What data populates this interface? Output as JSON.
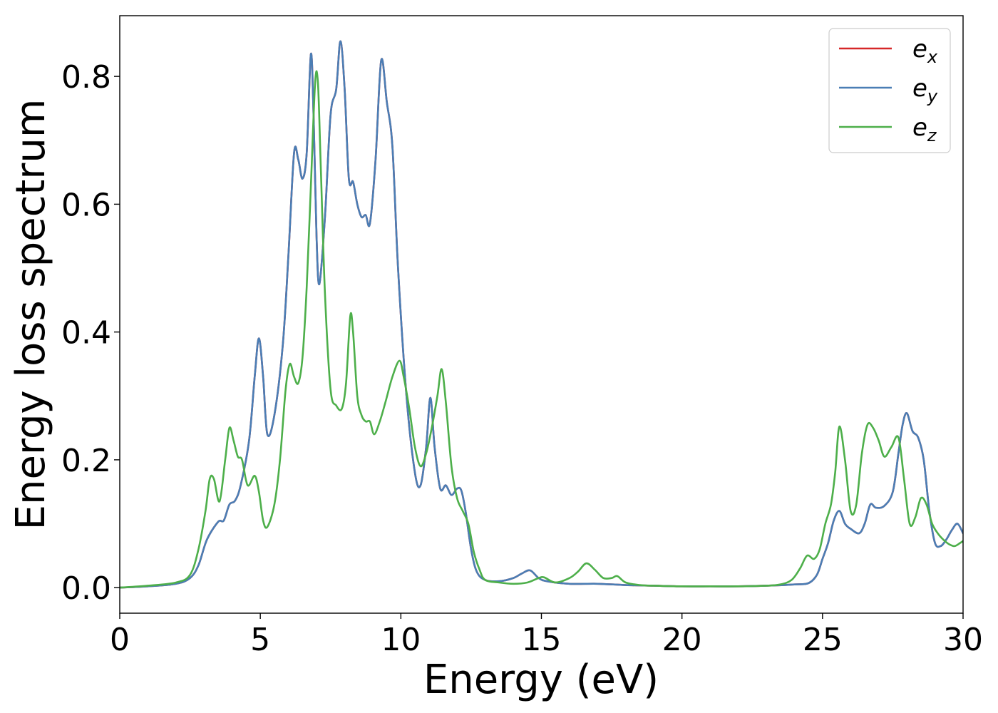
{
  "chart_data": {
    "type": "line",
    "title": "",
    "xlabel": "Energy (eV)",
    "ylabel": "Energy loss spectrum",
    "xlim": [
      0,
      30
    ],
    "ylim": [
      -0.04,
      0.895
    ],
    "xticks": [
      0,
      5,
      10,
      15,
      20,
      25,
      30
    ],
    "yticks": [
      0.0,
      0.2,
      0.4,
      0.6,
      0.8
    ],
    "xtick_labels": [
      "0",
      "5",
      "10",
      "15",
      "20",
      "25",
      "30"
    ],
    "ytick_labels": [
      "0.0",
      "0.2",
      "0.4",
      "0.6",
      "0.8"
    ],
    "grid": false,
    "legend_position": "top-right",
    "series": [
      {
        "name": "e_x",
        "legend_base": "e",
        "legend_sub": "x",
        "color": "#d62728",
        "x": [
          0,
          1,
          2,
          2.5,
          2.8,
          3.1,
          3.5,
          3.7,
          3.9,
          4.1,
          4.3,
          4.6,
          4.8,
          4.95,
          5.1,
          5.25,
          5.5,
          5.8,
          6.0,
          6.2,
          6.35,
          6.5,
          6.65,
          6.8,
          6.9,
          7.0,
          7.1,
          7.3,
          7.5,
          7.7,
          7.85,
          8.0,
          8.15,
          8.3,
          8.45,
          8.6,
          8.75,
          8.9,
          9.1,
          9.3,
          9.5,
          9.7,
          9.9,
          10.2,
          10.5,
          10.7,
          10.9,
          11.05,
          11.2,
          11.4,
          11.6,
          11.8,
          12.0,
          12.15,
          12.3,
          12.5,
          12.7,
          13.0,
          13.5,
          14.0,
          14.3,
          14.6,
          14.9,
          15.2,
          16.0,
          17.0,
          18.0,
          19.0,
          20.0,
          21.0,
          22.0,
          23.0,
          24.0,
          24.5,
          24.8,
          25.0,
          25.2,
          25.4,
          25.6,
          25.8,
          26.0,
          26.3,
          26.5,
          26.7,
          26.9,
          27.2,
          27.5,
          27.7,
          27.85,
          28.0,
          28.2,
          28.4,
          28.6,
          28.8,
          29.0,
          29.2,
          29.4,
          29.6,
          29.8,
          30.0
        ],
        "y": [
          0.0,
          0.002,
          0.006,
          0.015,
          0.035,
          0.075,
          0.103,
          0.105,
          0.13,
          0.136,
          0.16,
          0.23,
          0.33,
          0.39,
          0.33,
          0.24,
          0.27,
          0.38,
          0.52,
          0.68,
          0.67,
          0.64,
          0.68,
          0.835,
          0.73,
          0.55,
          0.475,
          0.58,
          0.74,
          0.78,
          0.855,
          0.78,
          0.64,
          0.635,
          0.6,
          0.58,
          0.583,
          0.57,
          0.67,
          0.825,
          0.76,
          0.69,
          0.5,
          0.3,
          0.18,
          0.16,
          0.22,
          0.297,
          0.22,
          0.155,
          0.16,
          0.145,
          0.155,
          0.152,
          0.12,
          0.06,
          0.025,
          0.012,
          0.01,
          0.015,
          0.022,
          0.027,
          0.015,
          0.01,
          0.006,
          0.006,
          0.004,
          0.003,
          0.002,
          0.002,
          0.002,
          0.003,
          0.005,
          0.007,
          0.02,
          0.045,
          0.07,
          0.105,
          0.12,
          0.1,
          0.092,
          0.085,
          0.1,
          0.13,
          0.125,
          0.128,
          0.15,
          0.21,
          0.255,
          0.273,
          0.245,
          0.235,
          0.2,
          0.12,
          0.07,
          0.065,
          0.075,
          0.09,
          0.1,
          0.085
        ]
      },
      {
        "name": "e_y",
        "legend_base": "e",
        "legend_sub": "y",
        "color": "#4a7eb5",
        "x": [
          0,
          1,
          2,
          2.5,
          2.8,
          3.1,
          3.5,
          3.7,
          3.9,
          4.1,
          4.3,
          4.6,
          4.8,
          4.95,
          5.1,
          5.25,
          5.5,
          5.8,
          6.0,
          6.2,
          6.35,
          6.5,
          6.65,
          6.8,
          6.9,
          7.0,
          7.1,
          7.3,
          7.5,
          7.7,
          7.85,
          8.0,
          8.15,
          8.3,
          8.45,
          8.6,
          8.75,
          8.9,
          9.1,
          9.3,
          9.5,
          9.7,
          9.9,
          10.2,
          10.5,
          10.7,
          10.9,
          11.05,
          11.2,
          11.4,
          11.6,
          11.8,
          12.0,
          12.15,
          12.3,
          12.5,
          12.7,
          13.0,
          13.5,
          14.0,
          14.3,
          14.6,
          14.9,
          15.2,
          16.0,
          17.0,
          18.0,
          19.0,
          20.0,
          21.0,
          22.0,
          23.0,
          24.0,
          24.5,
          24.8,
          25.0,
          25.2,
          25.4,
          25.6,
          25.8,
          26.0,
          26.3,
          26.5,
          26.7,
          26.9,
          27.2,
          27.5,
          27.7,
          27.85,
          28.0,
          28.2,
          28.4,
          28.6,
          28.8,
          29.0,
          29.2,
          29.4,
          29.6,
          29.8,
          30.0
        ],
        "y": [
          0.0,
          0.002,
          0.006,
          0.015,
          0.035,
          0.075,
          0.103,
          0.105,
          0.13,
          0.136,
          0.16,
          0.23,
          0.33,
          0.39,
          0.33,
          0.24,
          0.27,
          0.38,
          0.52,
          0.68,
          0.67,
          0.64,
          0.68,
          0.835,
          0.73,
          0.55,
          0.475,
          0.58,
          0.74,
          0.78,
          0.855,
          0.78,
          0.64,
          0.635,
          0.6,
          0.58,
          0.583,
          0.57,
          0.67,
          0.825,
          0.76,
          0.69,
          0.5,
          0.3,
          0.18,
          0.16,
          0.22,
          0.297,
          0.22,
          0.155,
          0.16,
          0.145,
          0.155,
          0.152,
          0.12,
          0.06,
          0.025,
          0.012,
          0.01,
          0.015,
          0.022,
          0.027,
          0.015,
          0.01,
          0.006,
          0.006,
          0.004,
          0.003,
          0.002,
          0.002,
          0.002,
          0.003,
          0.005,
          0.007,
          0.02,
          0.045,
          0.07,
          0.105,
          0.12,
          0.1,
          0.092,
          0.085,
          0.1,
          0.13,
          0.125,
          0.128,
          0.15,
          0.21,
          0.255,
          0.273,
          0.245,
          0.235,
          0.2,
          0.12,
          0.07,
          0.065,
          0.075,
          0.09,
          0.1,
          0.085
        ]
      },
      {
        "name": "e_z",
        "legend_base": "e",
        "legend_sub": "z",
        "color": "#4daf4a",
        "x": [
          0,
          1,
          2,
          2.5,
          2.8,
          3.05,
          3.2,
          3.35,
          3.55,
          3.75,
          3.9,
          4.05,
          4.2,
          4.35,
          4.55,
          4.8,
          4.95,
          5.1,
          5.25,
          5.5,
          5.7,
          5.9,
          6.05,
          6.2,
          6.35,
          6.5,
          6.65,
          6.8,
          6.95,
          7.05,
          7.15,
          7.3,
          7.5,
          7.7,
          7.9,
          8.05,
          8.2,
          8.3,
          8.45,
          8.6,
          8.75,
          8.9,
          9.05,
          9.25,
          9.45,
          9.7,
          9.95,
          10.1,
          10.3,
          10.5,
          10.7,
          10.9,
          11.1,
          11.3,
          11.45,
          11.6,
          11.8,
          12.0,
          12.2,
          12.4,
          12.6,
          12.8,
          13.0,
          13.5,
          14.0,
          14.5,
          14.9,
          15.1,
          15.5,
          16.0,
          16.3,
          16.6,
          16.9,
          17.2,
          17.5,
          17.7,
          18.0,
          18.5,
          19.0,
          20.0,
          21.0,
          22.0,
          23.0,
          23.5,
          23.9,
          24.2,
          24.45,
          24.7,
          24.9,
          25.1,
          25.3,
          25.45,
          25.6,
          25.8,
          26.0,
          26.2,
          26.4,
          26.6,
          26.8,
          27.0,
          27.2,
          27.45,
          27.7,
          27.9,
          28.1,
          28.3,
          28.5,
          28.7,
          28.9,
          29.1,
          29.3,
          29.5,
          29.7,
          29.9,
          30.0
        ],
        "y": [
          0.0,
          0.003,
          0.008,
          0.02,
          0.06,
          0.12,
          0.17,
          0.17,
          0.135,
          0.2,
          0.25,
          0.23,
          0.205,
          0.2,
          0.16,
          0.175,
          0.15,
          0.105,
          0.095,
          0.13,
          0.2,
          0.31,
          0.35,
          0.33,
          0.32,
          0.36,
          0.47,
          0.63,
          0.79,
          0.79,
          0.66,
          0.46,
          0.31,
          0.285,
          0.28,
          0.32,
          0.425,
          0.4,
          0.3,
          0.27,
          0.26,
          0.26,
          0.24,
          0.26,
          0.29,
          0.33,
          0.355,
          0.33,
          0.28,
          0.22,
          0.19,
          0.21,
          0.25,
          0.3,
          0.342,
          0.29,
          0.19,
          0.14,
          0.12,
          0.1,
          0.055,
          0.028,
          0.012,
          0.008,
          0.006,
          0.008,
          0.015,
          0.016,
          0.008,
          0.015,
          0.025,
          0.038,
          0.028,
          0.015,
          0.015,
          0.018,
          0.008,
          0.004,
          0.003,
          0.002,
          0.002,
          0.002,
          0.003,
          0.005,
          0.012,
          0.03,
          0.05,
          0.045,
          0.06,
          0.1,
          0.13,
          0.18,
          0.252,
          0.2,
          0.12,
          0.13,
          0.21,
          0.255,
          0.25,
          0.23,
          0.205,
          0.22,
          0.235,
          0.17,
          0.1,
          0.11,
          0.14,
          0.13,
          0.1,
          0.085,
          0.075,
          0.068,
          0.065,
          0.07,
          0.073
        ]
      }
    ]
  }
}
